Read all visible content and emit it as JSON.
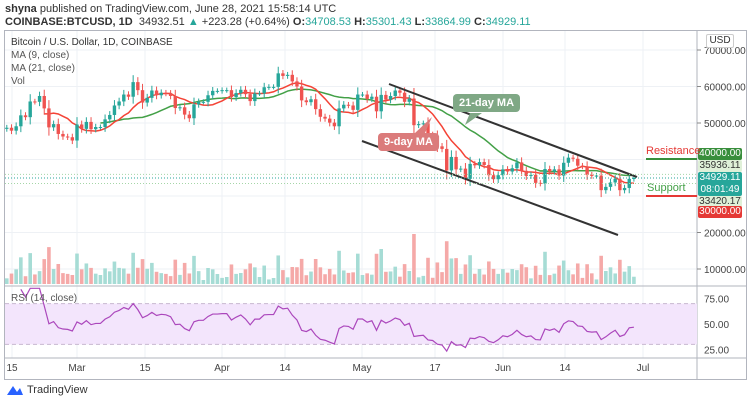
{
  "header": {
    "author": "shyna",
    "published_text": "published on TradingView.com, June 28, 2021 15:58:14 UTC",
    "symbol": "COINBASE:BTCUSD, 1D",
    "last": "34932.51",
    "change": "+223.28 (+0.64%)",
    "open_label": "O:",
    "open": "34708.53",
    "high_label": "H:",
    "high": "35301.43",
    "low_label": "L:",
    "low": "33864.99",
    "close_label": "C:",
    "close": "34929.11"
  },
  "legend": {
    "title": "Bitcoin / U.S. Dollar, 1D, COINBASE",
    "ma9": "MA (9, close)",
    "ma21": "MA (21, close)",
    "vol": "Vol",
    "rsi": "RSI (14, close)"
  },
  "price_axis": {
    "currency": "USD",
    "ticks": [
      "70000.00",
      "60000.00",
      "50000.00",
      "20000.00",
      "10000.00"
    ],
    "tags": {
      "resistance_price": "40000.00",
      "upper_level": "35936.11",
      "last_price": "34929.11",
      "countdown": "08:01:49",
      "lower_level": "33420.17",
      "support_price": "30000.00"
    }
  },
  "annotations": {
    "resistance": "Resistance",
    "support": "Support",
    "ma21_label": "21-day MA",
    "ma9_label": "9-day MA"
  },
  "rsi_axis": [
    "75.00",
    "50.00",
    "25.00"
  ],
  "time_axis": [
    "15",
    "Mar",
    "15",
    "Apr",
    "14",
    "May",
    "17",
    "Jun",
    "14",
    "Jul"
  ],
  "footer": {
    "brand": "TradingView"
  },
  "colors": {
    "up": "#26a69a",
    "down": "#ef5350",
    "ma9": "#f44336",
    "ma21": "#43a047",
    "rsi": "#ab47bc",
    "rsi_band": "#f3e5fc",
    "resistance": "#388e3c",
    "support": "#e53935"
  },
  "chart_data": {
    "type": "candlestick",
    "title": "Bitcoin / U.S. Dollar, 1D, COINBASE",
    "start_date": "2021-02-14",
    "end_date": "2021-06-28",
    "ylim": [
      0,
      74000
    ],
    "grid": true,
    "closes": [
      48700,
      47900,
      49100,
      52100,
      51600,
      55900,
      55800,
      57400,
      54000,
      48800,
      49700,
      47000,
      46300,
      46100,
      45200,
      49600,
      48400,
      50300,
      48300,
      48900,
      48900,
      51000,
      52200,
      54800,
      55900,
      57800,
      57200,
      61200,
      59000,
      55600,
      56900,
      58900,
      57600,
      58300,
      58100,
      57400,
      54100,
      54300,
      52300,
      51300,
      55100,
      55800,
      55800,
      57600,
      58800,
      58800,
      59000,
      59000,
      57100,
      58200,
      59100,
      57900,
      56000,
      58100,
      58100,
      59800,
      59900,
      59900,
      63600,
      62900,
      63200,
      61400,
      60000,
      56200,
      55700,
      56500,
      53800,
      51700,
      51200,
      50100,
      49100,
      54000,
      55000,
      54800,
      53600,
      57800,
      57800,
      56600,
      57200,
      53200,
      57700,
      56400,
      57400,
      58900,
      58300,
      55800,
      56700,
      49400,
      49700,
      49900,
      46800,
      46400,
      43600,
      42900,
      37000,
      40700,
      37300,
      37500,
      34700,
      38800,
      38400,
      39300,
      38500,
      35700,
      34600,
      35700,
      37300,
      36700,
      37600,
      39200,
      36900,
      35500,
      35800,
      33600,
      33400,
      37400,
      36700,
      37300,
      35600,
      39100,
      40500,
      40200,
      38300,
      38100,
      35800,
      35500,
      35600,
      31600,
      32500,
      33700,
      34700,
      31600,
      32200,
      34700,
      34929
    ],
    "indicators": [
      "MA 9 close",
      "MA 21 close",
      "Volume",
      "RSI 14 close"
    ],
    "levels": {
      "resistance": 40000,
      "support": 30000
    },
    "rsi_levels": [
      70,
      30
    ]
  }
}
